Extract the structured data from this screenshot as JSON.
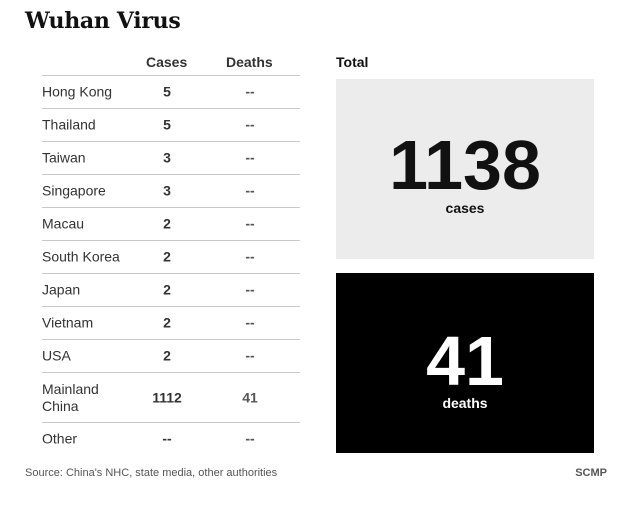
{
  "title": "Wuhan Virus",
  "chart_data": {
    "type": "table",
    "columns": [
      "Cases",
      "Deaths"
    ],
    "rows": [
      {
        "country": "Hong Kong",
        "cases": "5",
        "deaths": "--"
      },
      {
        "country": "Thailand",
        "cases": "5",
        "deaths": "--"
      },
      {
        "country": "Taiwan",
        "cases": "3",
        "deaths": "--"
      },
      {
        "country": "Singapore",
        "cases": "3",
        "deaths": "--"
      },
      {
        "country": "Macau",
        "cases": "2",
        "deaths": "--"
      },
      {
        "country": "South Korea",
        "cases": "2",
        "deaths": "--"
      },
      {
        "country": "Japan",
        "cases": "2",
        "deaths": "--"
      },
      {
        "country": "Vietnam",
        "cases": "2",
        "deaths": "--"
      },
      {
        "country": "USA",
        "cases": "2",
        "deaths": "--"
      },
      {
        "country": "Mainland China",
        "cases": "1112",
        "deaths": "41"
      },
      {
        "country": "Other",
        "cases": "--",
        "deaths": "--"
      }
    ],
    "total": {
      "label": "Total",
      "cases": "1138",
      "cases_unit": "cases",
      "deaths": "41",
      "deaths_unit": "deaths"
    }
  },
  "source": "Source: China's NHC, state media, other authorities",
  "credit": "SCMP",
  "colors": {
    "cases_box_bg": "#ececec",
    "deaths_box_bg": "#000000",
    "deaths_box_text": "#ffffff"
  }
}
